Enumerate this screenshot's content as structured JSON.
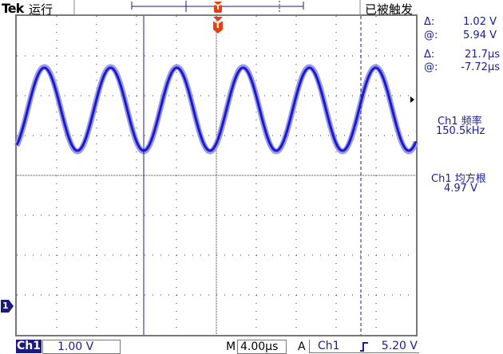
{
  "header": {
    "brand": "Tek",
    "run_state": "运行",
    "trigger_status": "已被触发"
  },
  "cursor_readouts": {
    "volt_delta_symbol": "Δ:",
    "volt_delta": "1.02 V",
    "volt_at_symbol": "@:",
    "volt_at": "5.94 V",
    "time_delta_symbol": "Δ:",
    "time_delta": "21.7µs",
    "time_at_symbol": "@:",
    "time_at": "-7.72µs"
  },
  "measurements": [
    {
      "label": "Ch1 频率",
      "value": "150.5kHz"
    },
    {
      "label": "Ch1 均方根",
      "value": "4.97 V"
    }
  ],
  "footer": {
    "channel": "Ch1",
    "volts_per_div": "1.00 V",
    "time_prefix": "M",
    "time_per_div": "4.00µs",
    "trigger_prefix": "A",
    "trigger_source": "Ch1",
    "trigger_slope_icon": "rising-edge",
    "trigger_level": "5.20 V"
  },
  "markers": {
    "channel_ground": "1",
    "trigger_marker": "T"
  },
  "colors": {
    "trace": "#1a1ad0",
    "cursor": "#1a1aa0",
    "trigger": "#e84010",
    "grid": "#333333"
  }
}
